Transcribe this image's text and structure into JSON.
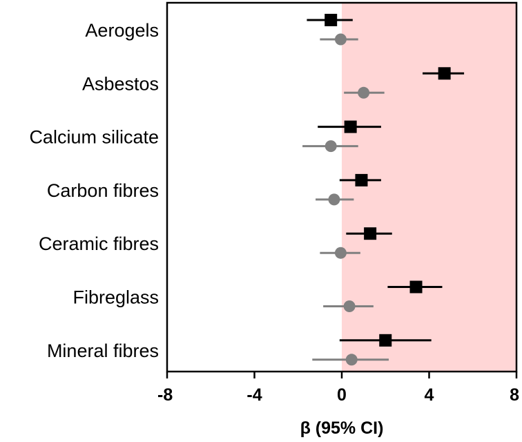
{
  "chart_data": {
    "type": "scatter",
    "subtype": "forest-plot",
    "categories": [
      "Aerogels",
      "Asbestos",
      "Calcium silicate",
      "Carbon fibres",
      "Ceramic fibres",
      "Fibreglass",
      "Mineral fibres"
    ],
    "series": [
      {
        "marker": "square",
        "color": "#000000",
        "estimates": [
          -0.5,
          4.7,
          0.4,
          0.9,
          1.3,
          3.4,
          2.0
        ],
        "ci_lower": [
          -1.6,
          3.7,
          -1.1,
          -0.1,
          0.2,
          2.1,
          -0.1
        ],
        "ci_upper": [
          0.5,
          5.6,
          1.8,
          1.8,
          2.3,
          4.6,
          4.1
        ]
      },
      {
        "marker": "circle",
        "color": "#808080",
        "estimates": [
          -0.05,
          1.0,
          -0.5,
          -0.35,
          -0.05,
          0.35,
          0.45
        ],
        "ci_lower": [
          -1.0,
          0.1,
          -1.8,
          -1.2,
          -1.0,
          -0.85,
          -1.35
        ],
        "ci_upper": [
          0.75,
          1.95,
          0.75,
          0.55,
          0.85,
          1.45,
          2.15
        ]
      }
    ],
    "xlim": [
      -8,
      8
    ],
    "xticks": [
      -8,
      -4,
      0,
      4,
      8
    ],
    "xtick_labels": [
      "-8",
      "-4",
      "0",
      "4",
      "8"
    ],
    "xlabel": "β (95% CI)",
    "ylabel": "",
    "title": "",
    "shaded_region": {
      "from": 0,
      "to": 8,
      "color": "#ffd6d6"
    },
    "grid": false,
    "legend": "none"
  }
}
